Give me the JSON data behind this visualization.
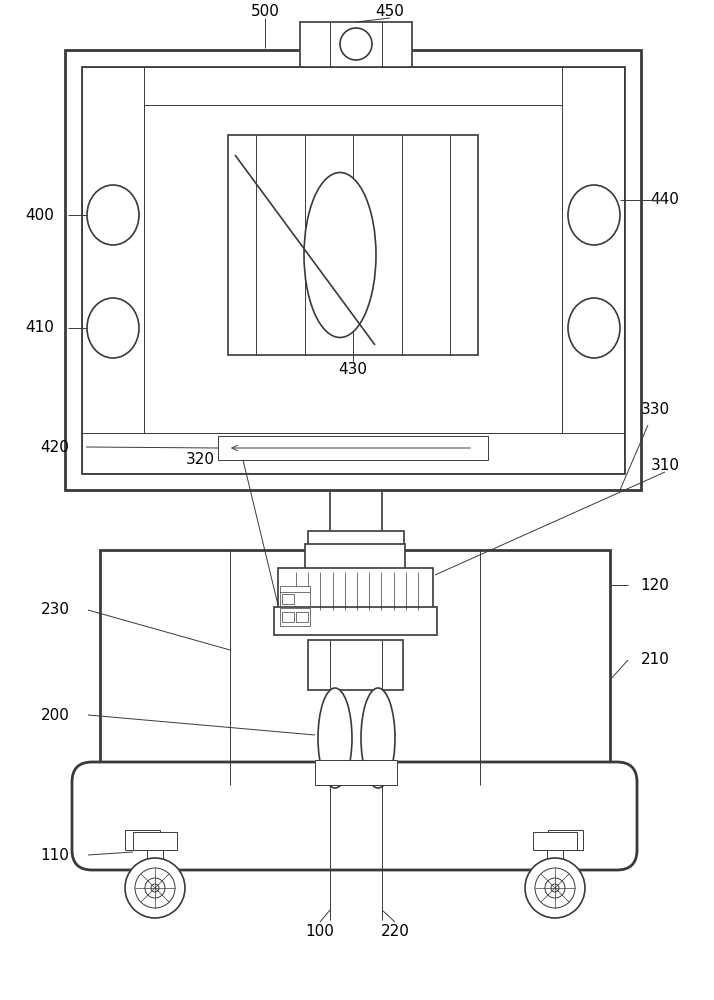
{
  "bg_color": "#ffffff",
  "line_color": "#3a3a3a",
  "lw_thick": 2.0,
  "lw_med": 1.2,
  "lw_thin": 0.7,
  "lw_xthin": 0.5
}
